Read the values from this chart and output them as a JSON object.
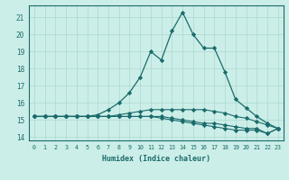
{
  "xlabel": "Humidex (Indice chaleur)",
  "bg_color": "#cceee8",
  "grid_color": "#aad8d0",
  "line_color": "#1a6b6b",
  "xlim": [
    -0.5,
    23.5
  ],
  "ylim": [
    13.8,
    21.7
  ],
  "x_ticks": [
    0,
    1,
    2,
    3,
    4,
    5,
    6,
    7,
    8,
    9,
    10,
    11,
    12,
    13,
    14,
    15,
    16,
    17,
    18,
    19,
    20,
    21,
    22,
    23
  ],
  "y_ticks": [
    14,
    15,
    16,
    17,
    18,
    19,
    20,
    21
  ],
  "main_series": [
    15.2,
    15.2,
    15.2,
    15.2,
    15.2,
    15.2,
    15.3,
    15.6,
    16.0,
    16.6,
    17.5,
    19.0,
    18.5,
    20.2,
    21.3,
    20.0,
    19.2,
    19.2,
    17.8,
    16.2,
    15.7,
    15.2,
    14.8,
    14.5
  ],
  "series2": [
    15.2,
    15.2,
    15.2,
    15.2,
    15.2,
    15.2,
    15.2,
    15.2,
    15.3,
    15.4,
    15.5,
    15.6,
    15.6,
    15.6,
    15.6,
    15.6,
    15.6,
    15.5,
    15.4,
    15.2,
    15.1,
    14.9,
    14.7,
    14.5
  ],
  "series3": [
    15.2,
    15.2,
    15.2,
    15.2,
    15.2,
    15.2,
    15.2,
    15.2,
    15.2,
    15.2,
    15.2,
    15.2,
    15.1,
    15.0,
    14.9,
    14.8,
    14.7,
    14.6,
    14.5,
    14.4,
    14.4,
    14.4,
    14.2,
    14.5
  ],
  "series4": [
    15.2,
    15.2,
    15.2,
    15.2,
    15.2,
    15.2,
    15.2,
    15.2,
    15.2,
    15.2,
    15.2,
    15.2,
    15.2,
    15.1,
    15.0,
    14.9,
    14.8,
    14.8,
    14.7,
    14.6,
    14.5,
    14.5,
    14.2,
    14.5
  ]
}
